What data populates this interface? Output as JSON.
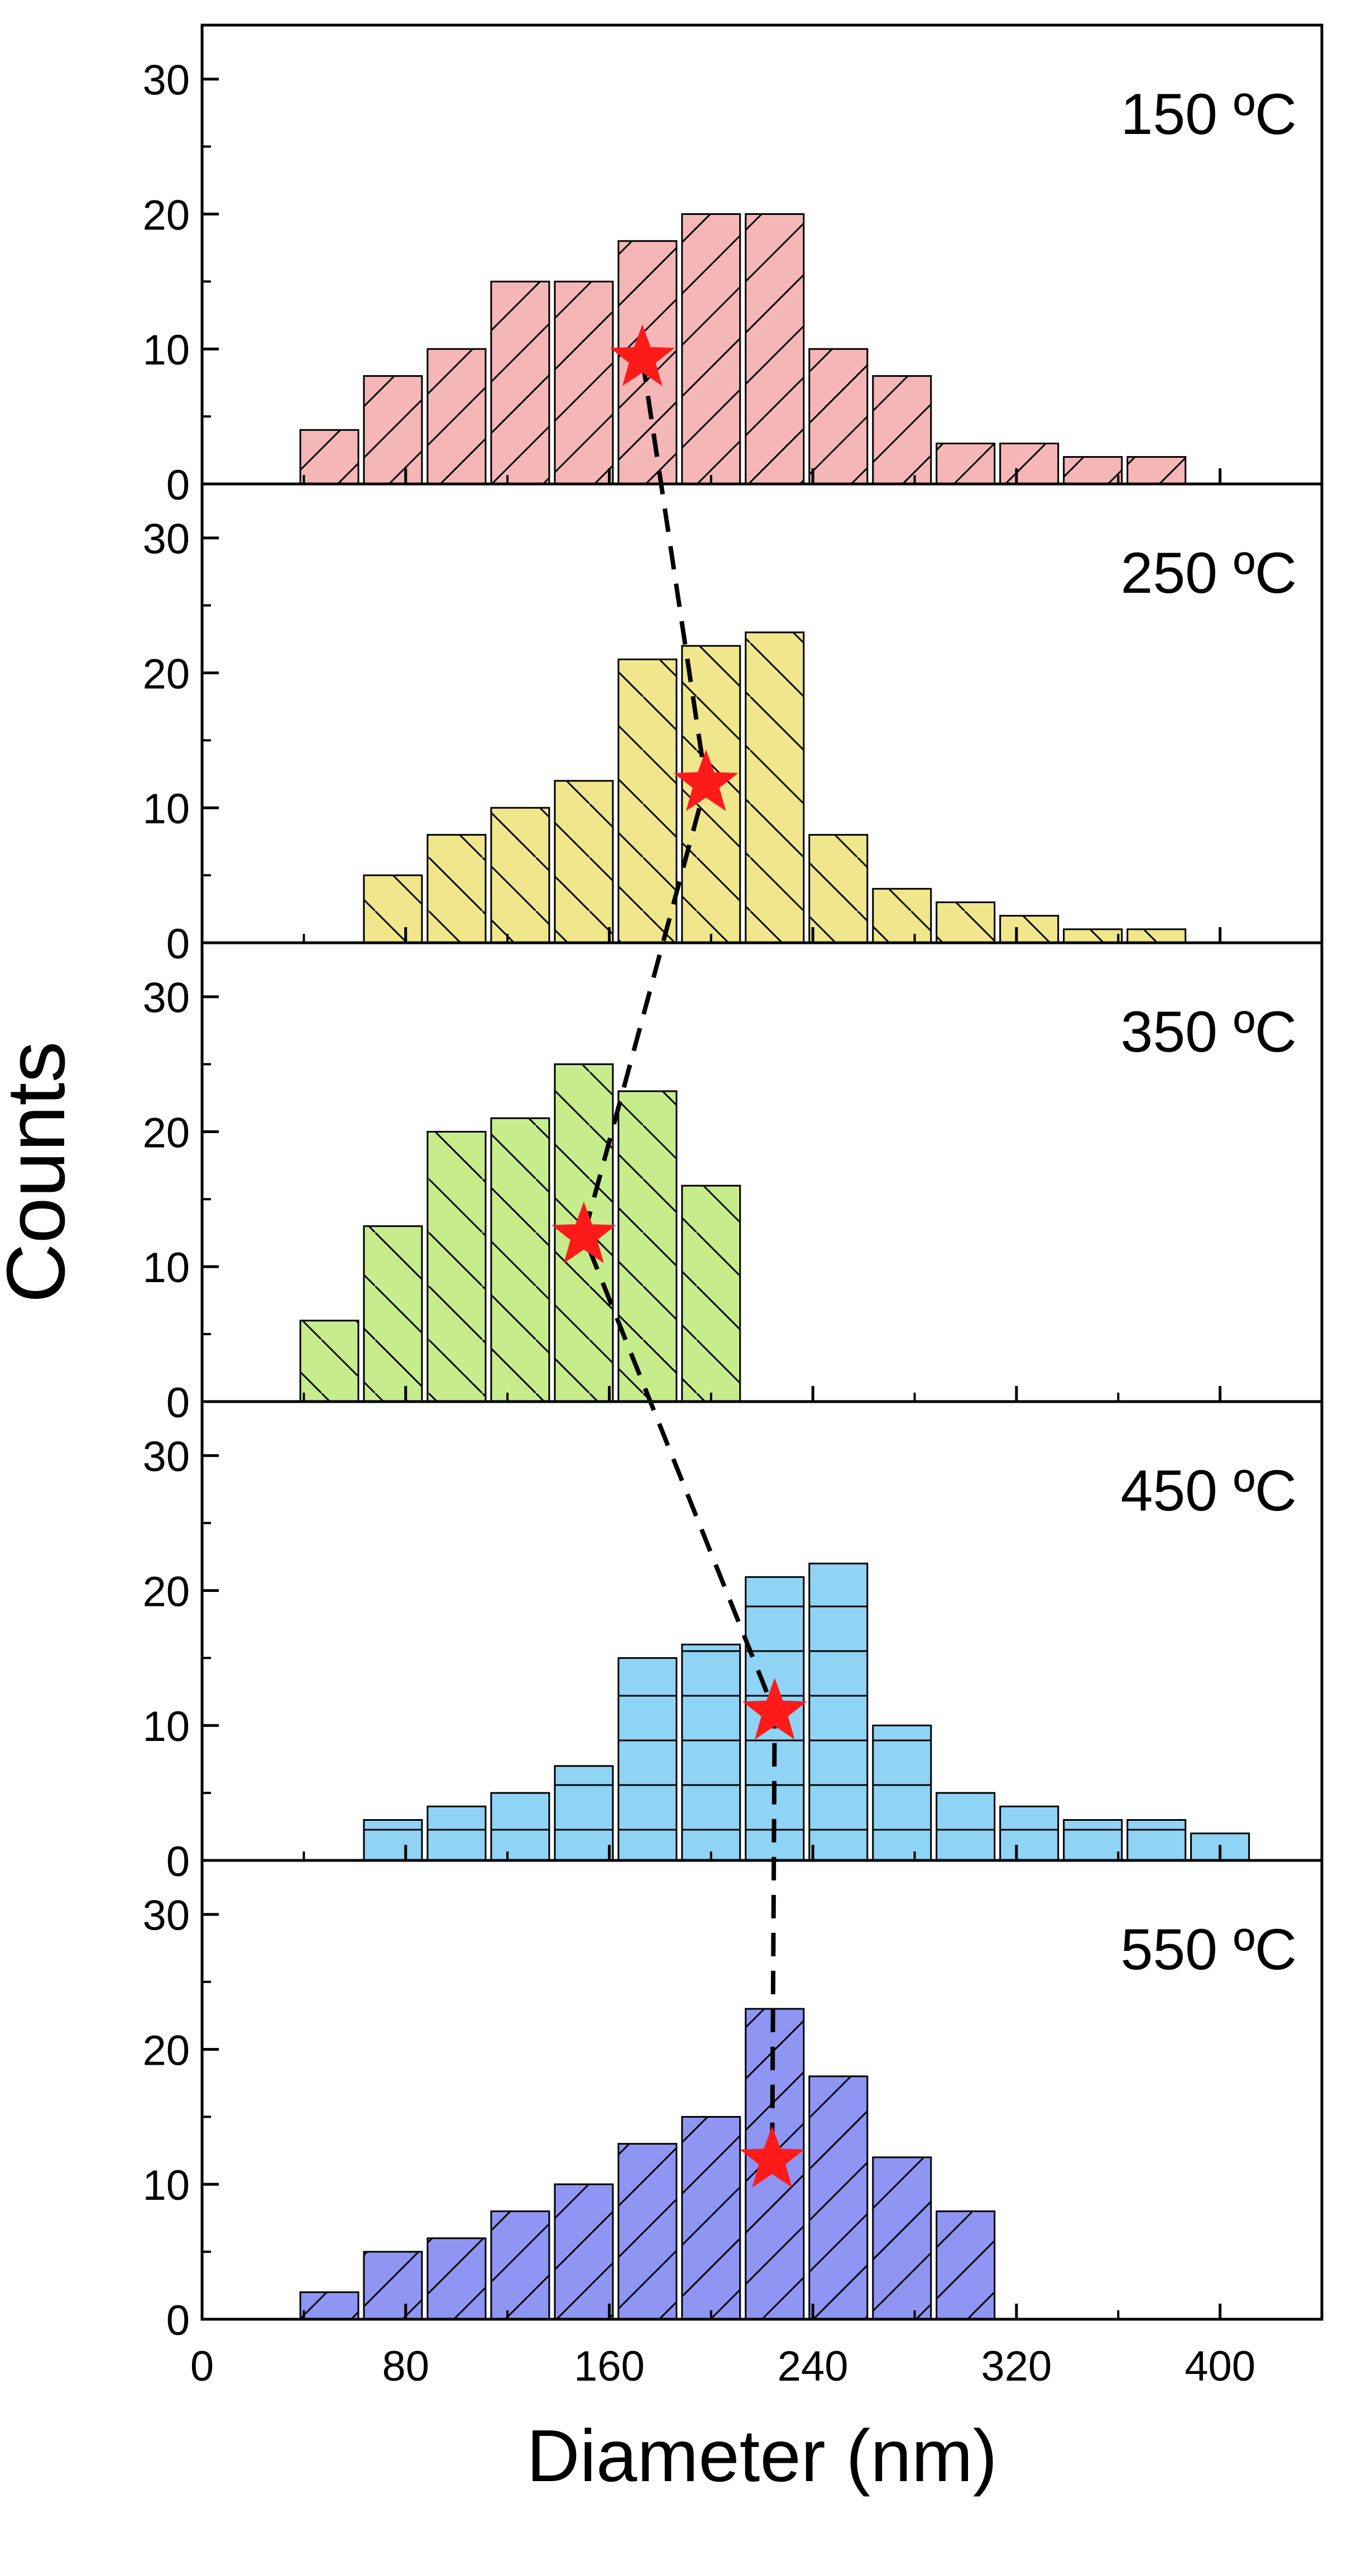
{
  "chart_data": {
    "type": "bar",
    "ylabel": "Counts",
    "xlabel": "Diameter (nm)",
    "xlim": [
      0,
      440
    ],
    "x_ticks": [
      "0",
      "80",
      "160",
      "240",
      "320",
      "400"
    ],
    "ylim": [
      0,
      34
    ],
    "y_ticks": [
      "0",
      "10",
      "20",
      "30"
    ],
    "bin_width": 25,
    "colors": {
      "150": "#f4b6b6",
      "250": "#f0e68c",
      "350": "#c6ec8c",
      "450": "#8fd3f5",
      "550": "#8f95f3",
      "star": "#ff1a1a",
      "edge": "#000000"
    },
    "panels": [
      {
        "label": "150 ºC",
        "color_key": "150",
        "hatch": "forward",
        "bin_centers": [
          50,
          75,
          100,
          125,
          150,
          175,
          200,
          225,
          250,
          275,
          300,
          325,
          350,
          375
        ],
        "values": [
          4,
          8,
          10,
          15,
          15,
          18,
          20,
          20,
          10,
          8,
          3,
          3,
          2,
          2
        ],
        "mean_diameter": 173,
        "mean_marker_y": 9.3
      },
      {
        "label": "250 ºC",
        "color_key": "250",
        "hatch": "back",
        "bin_centers": [
          75,
          100,
          125,
          150,
          175,
          200,
          225,
          250,
          275,
          300,
          325,
          350,
          375
        ],
        "values": [
          5,
          8,
          10,
          12,
          21,
          22,
          23,
          8,
          4,
          3,
          2,
          1,
          1
        ],
        "mean_diameter": 198,
        "mean_marker_y": 11.8
      },
      {
        "label": "350 ºC",
        "color_key": "350",
        "hatch": "back",
        "bin_centers": [
          50,
          75,
          100,
          125,
          150,
          175,
          200
        ],
        "values": [
          6,
          13,
          20,
          21,
          25,
          23,
          16
        ],
        "mean_diameter": 150,
        "mean_marker_y": 12.3
      },
      {
        "label": "450 ºC",
        "color_key": "450",
        "hatch": "horizontal",
        "bin_centers": [
          75,
          100,
          125,
          150,
          175,
          200,
          225,
          250,
          275,
          300,
          325,
          350,
          375,
          400
        ],
        "values": [
          3,
          4,
          5,
          7,
          15,
          16,
          21,
          22,
          10,
          5,
          4,
          3,
          3,
          2
        ],
        "mean_diameter": 225,
        "mean_marker_y": 11
      },
      {
        "label": "550 ºC",
        "color_key": "550",
        "hatch": "forward",
        "bin_centers": [
          50,
          75,
          100,
          125,
          150,
          175,
          200,
          225,
          250,
          275,
          300
        ],
        "values": [
          2,
          5,
          6,
          8,
          10,
          13,
          15,
          23,
          18,
          12,
          8
        ],
        "mean_diameter": 224,
        "mean_marker_y": 11.8
      }
    ]
  }
}
